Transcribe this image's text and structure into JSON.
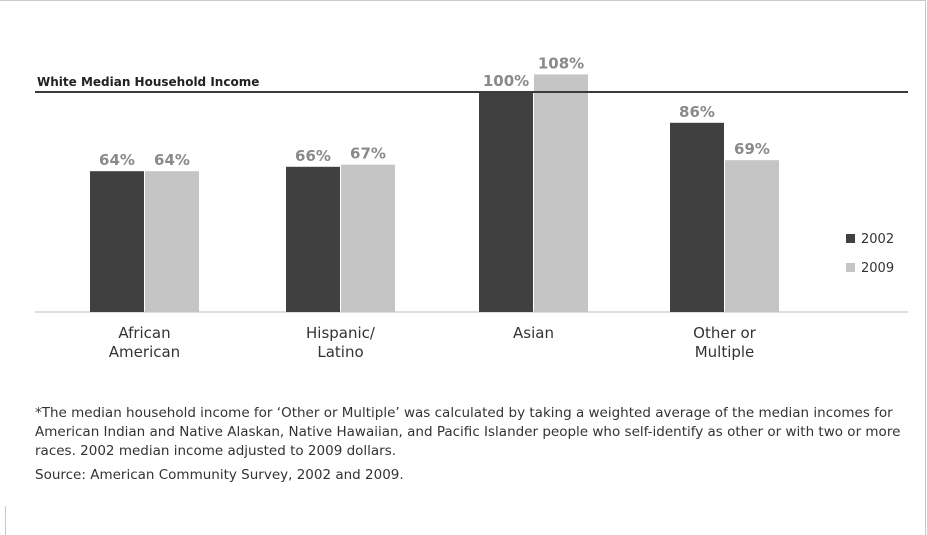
{
  "chart_data": {
    "type": "bar",
    "reference_line": {
      "label": "White Median Household Income",
      "value": 100
    },
    "categories": [
      [
        "African",
        "American"
      ],
      [
        "Hispanic/",
        "Latino"
      ],
      [
        "Asian"
      ],
      [
        "Other or",
        "Multiple"
      ]
    ],
    "series": [
      {
        "name": "2002",
        "color": "#404041",
        "values": [
          64,
          66,
          100,
          86
        ],
        "labels": [
          "64%",
          "66%",
          "100%",
          "86%"
        ]
      },
      {
        "name": "2009",
        "color": "#c5c5c6",
        "values": [
          64,
          67,
          108,
          69
        ],
        "labels": [
          "64%",
          "67%",
          "108%",
          "69%"
        ]
      }
    ],
    "label_color": "#8a8a8b",
    "legend_position": "right"
  },
  "footnote": "*The median household income for ‘Other or Multiple’ was calculated by taking a weighted average of the median incomes for American Indian and Native Alaskan, Native Hawaiian, and Pacific Islander people who self-identify as other or with two or more races. 2002 median income adjusted to 2009 dollars.",
  "source": "Source: American Community Survey, 2002 and 2009."
}
